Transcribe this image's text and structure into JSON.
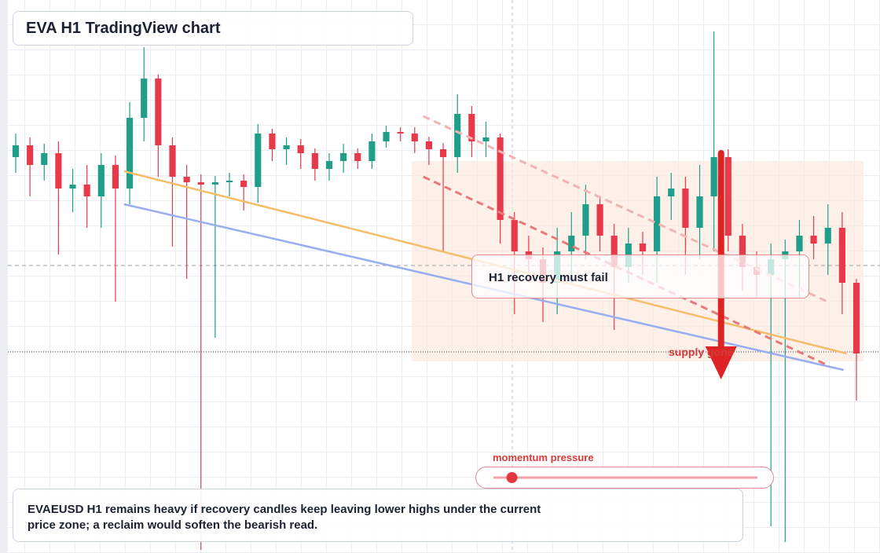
{
  "chart_data": {
    "type": "candlestick",
    "title": "EVA H1 TradingView chart",
    "annotation": "H1 recovery must fail",
    "zone_label": "supply gone",
    "caption": "EVAEUSD H1 remains heavy if recovery candles keep leaving lower highs under the current price zone; a reclaim would soften the bearish read.",
    "slider": {
      "label": "momentum pressure",
      "value": 7,
      "range": [
        0,
        100
      ]
    },
    "xlim": [
      0,
      59
    ],
    "ylim": [
      0,
      704
    ],
    "up_color": "#1f9e89",
    "down_color": "#e8394a",
    "open": [
      504,
      519,
      494,
      509,
      464,
      469,
      454,
      494,
      464,
      554,
      604,
      519,
      479,
      472,
      469,
      472,
      474,
      466,
      534,
      514,
      519,
      509,
      489,
      499,
      509,
      499,
      524,
      536,
      534,
      524,
      514,
      504,
      559,
      524,
      529,
      424,
      384,
      374,
      344,
      384,
      404,
      444,
      404,
      364,
      394,
      384,
      454,
      464,
      414,
      454,
      504,
      404,
      364,
      354,
      374,
      384,
      404,
      394,
      414,
      344
    ],
    "high": [
      534,
      529,
      521,
      524,
      489,
      494,
      509,
      506,
      574,
      644,
      609,
      529,
      494,
      482,
      480,
      484,
      482,
      546,
      540,
      529,
      527,
      515,
      509,
      521,
      515,
      534,
      544,
      542,
      542,
      530,
      522,
      584,
      569,
      549,
      534,
      434,
      404,
      389,
      414,
      434,
      469,
      454,
      419,
      414,
      409,
      479,
      484,
      479,
      494,
      664,
      514,
      419,
      384,
      394,
      399,
      424,
      429,
      444,
      434,
      349
    ],
    "low": [
      484,
      454,
      474,
      380,
      434,
      414,
      414,
      320,
      444,
      524,
      479,
      390,
      349,
      4,
      274,
      454,
      436,
      446,
      499,
      494,
      489,
      474,
      474,
      484,
      489,
      489,
      516,
      524,
      509,
      494,
      384,
      484,
      504,
      504,
      394,
      304,
      344,
      294,
      304,
      344,
      374,
      384,
      284,
      344,
      354,
      344,
      424,
      354,
      374,
      384,
      384,
      334,
      324,
      34,
      14,
      324,
      374,
      354,
      304,
      194
    ],
    "close": [
      519,
      494,
      509,
      464,
      469,
      454,
      494,
      464,
      554,
      604,
      519,
      479,
      472,
      469,
      472,
      474,
      466,
      534,
      514,
      519,
      509,
      489,
      499,
      509,
      499,
      524,
      536,
      534,
      524,
      514,
      504,
      559,
      524,
      529,
      424,
      384,
      374,
      344,
      384,
      404,
      444,
      404,
      364,
      394,
      384,
      454,
      464,
      414,
      454,
      504,
      404,
      364,
      354,
      374,
      384,
      404,
      394,
      414,
      344,
      254
    ],
    "zone": {
      "x": [
        27.8,
        59.5
      ],
      "values": [
        499,
        244
      ],
      "color": "#fbe9df"
    },
    "trendlines": [
      {
        "x": [
          7.6,
          58.3
        ],
        "values": [
          486,
          254
        ],
        "color": "#f5bd6a",
        "dash": false
      },
      {
        "x": [
          7.6,
          58.1
        ],
        "values": [
          444,
          233
        ],
        "color": "#97aef0",
        "dash": false
      },
      {
        "x": [
          28.6,
          57.1
        ],
        "values": [
          479,
          238
        ],
        "color": "#e8797a",
        "dash": true
      },
      {
        "x": [
          28.6,
          57.1
        ],
        "values": [
          556,
          319
        ],
        "color": "#f2b3b3",
        "dash": true
      }
    ],
    "levels": [
      {
        "value": 366,
        "style": "dashed"
      },
      {
        "value": 256,
        "style": "dotted"
      }
    ],
    "arrow": {
      "x": 49.5,
      "values": [
        509,
        221
      ],
      "color": "#dd2323"
    }
  }
}
